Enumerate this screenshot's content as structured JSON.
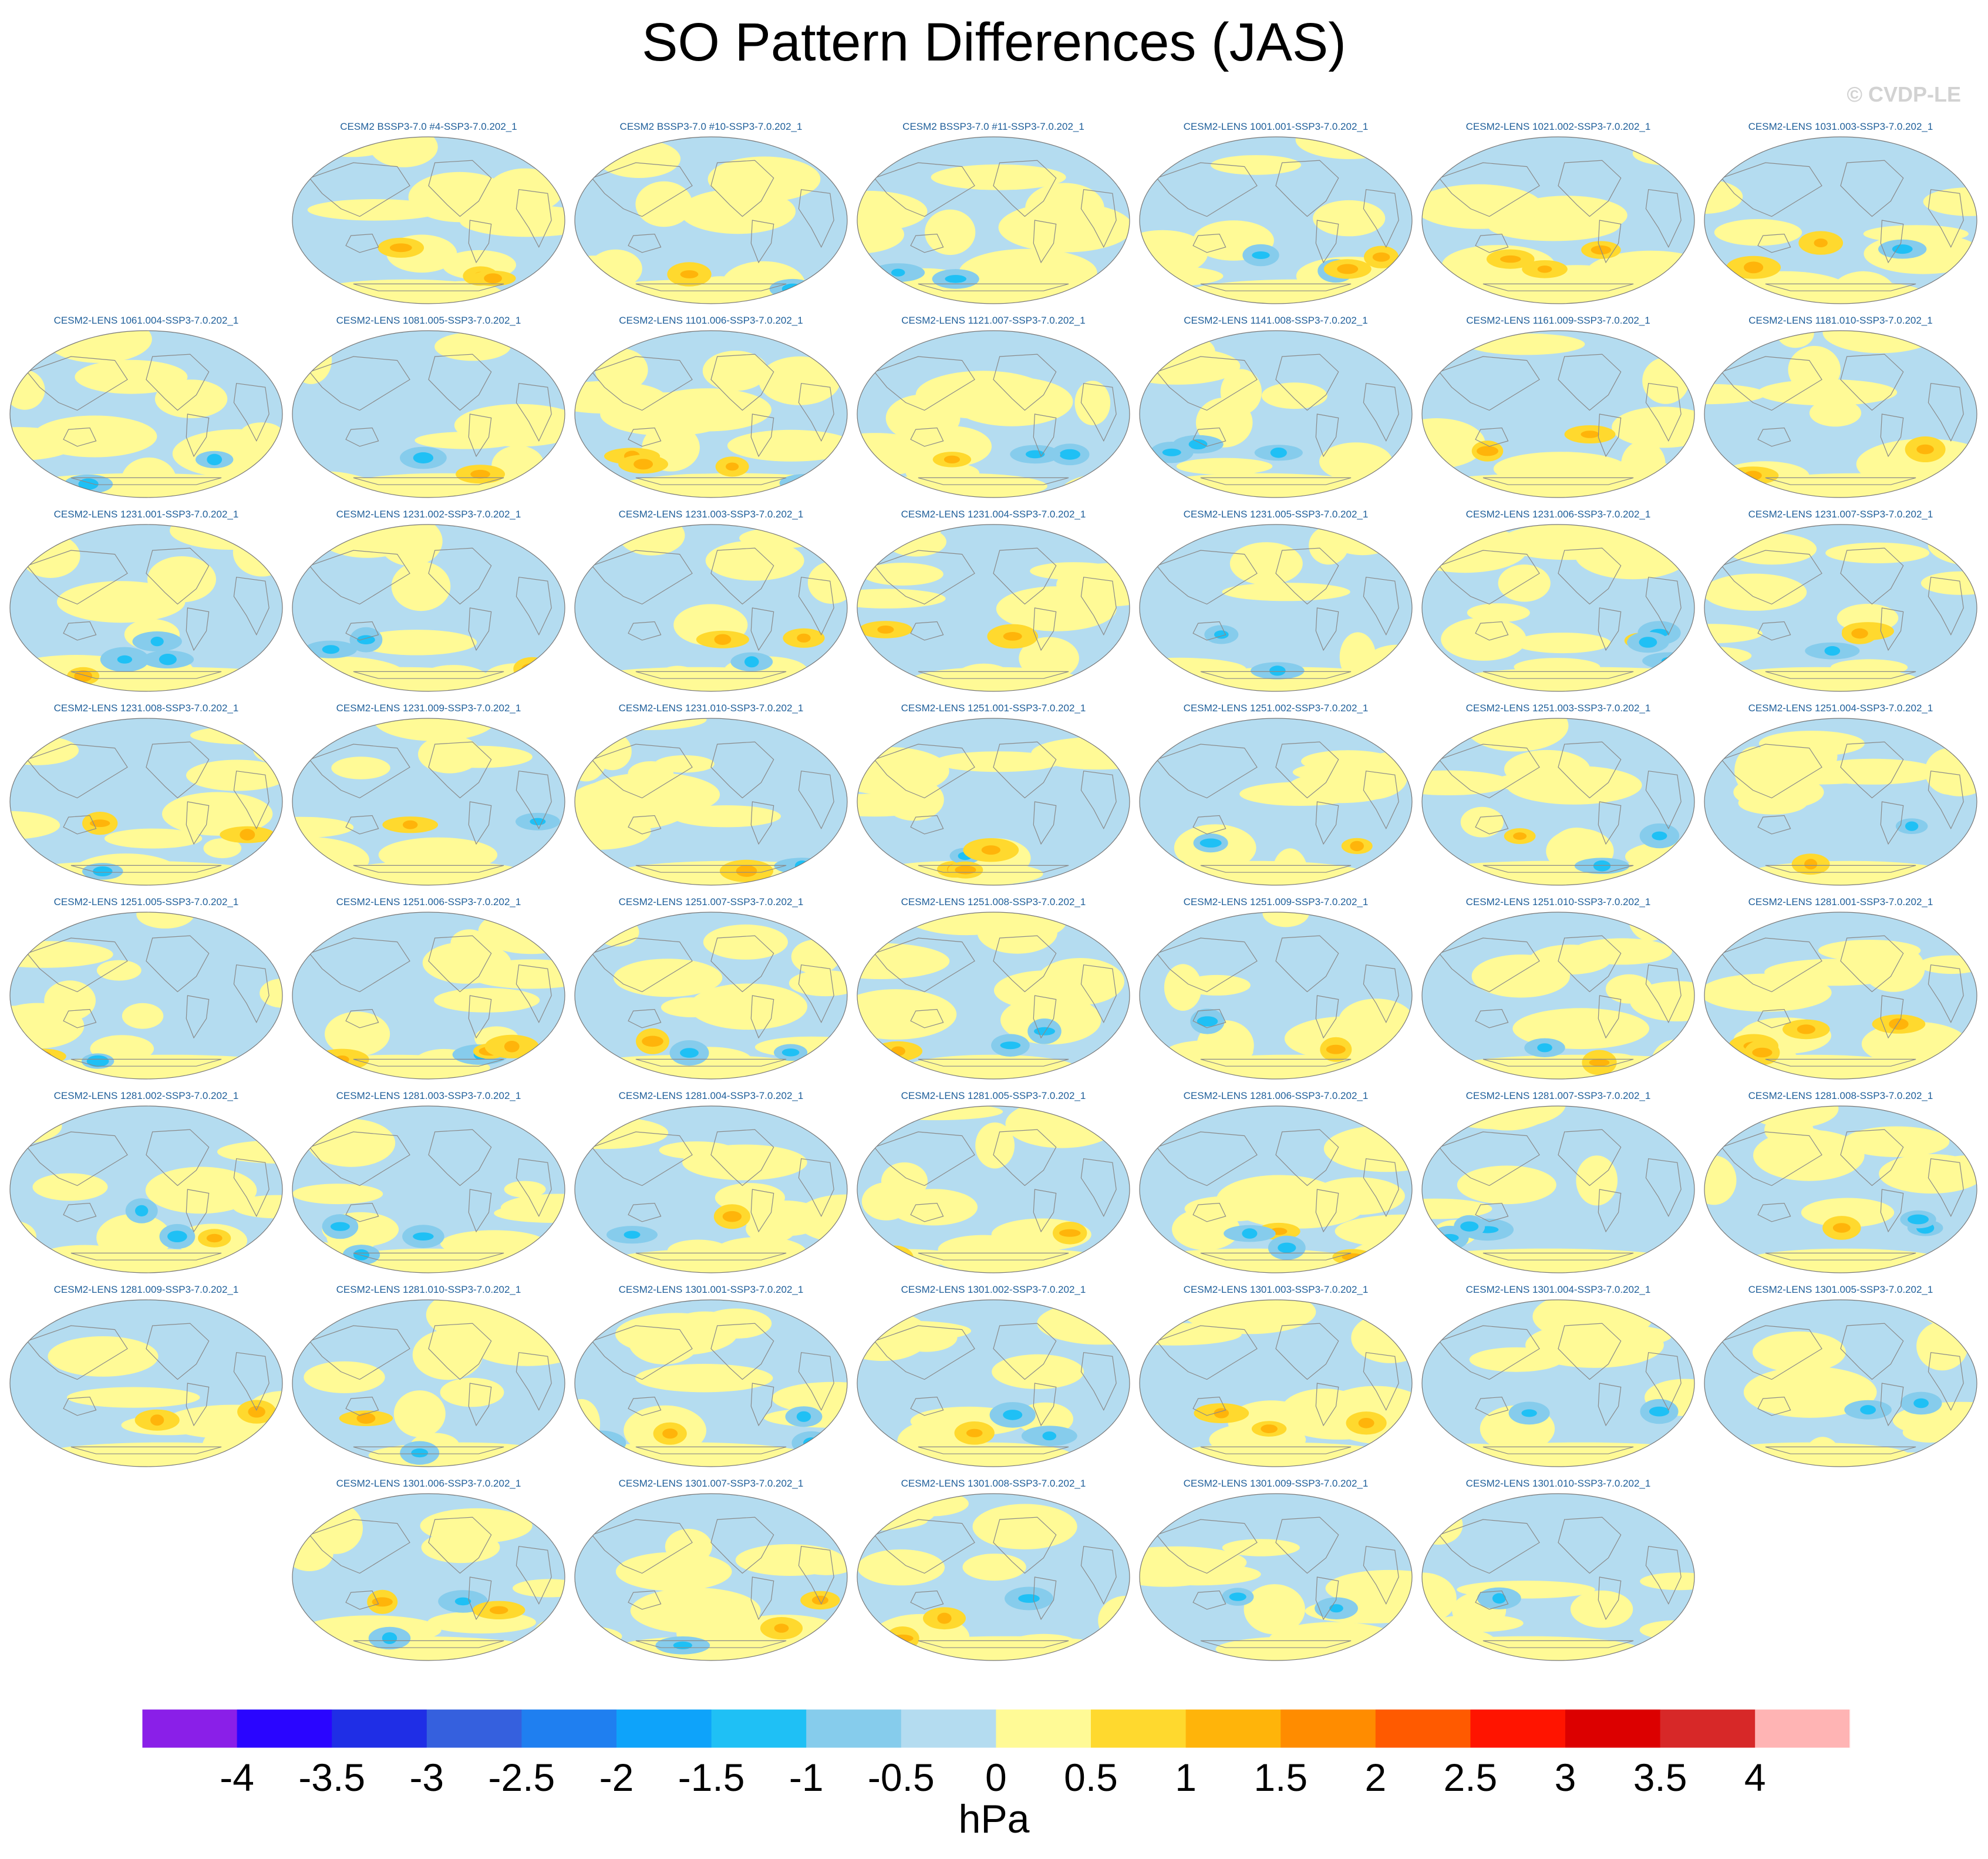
{
  "title": "SO Pattern Differences (JAS)",
  "credit": "© CVDP-LE",
  "colors": {
    "ocean_base": "#b4dcf0",
    "positive_light": "#fffa96",
    "coast": "#8a8a8a",
    "panel_title": "#1f5f9a"
  },
  "chart_data": {
    "type": "map-panel-grid",
    "title": "SO Pattern Differences (JAS)",
    "units": "hPa",
    "grid": {
      "rows": 8,
      "columns": 7
    },
    "panels": [
      {
        "label": "CESM2 BSSP3-7.0 #4-SSP3-7.0.202_1",
        "row": 0,
        "col": 1
      },
      {
        "label": "CESM2 BSSP3-7.0 #10-SSP3-7.0.202_1",
        "row": 0,
        "col": 2
      },
      {
        "label": "CESM2 BSSP3-7.0 #11-SSP3-7.0.202_1",
        "row": 0,
        "col": 3
      },
      {
        "label": "CESM2-LENS 1001.001-SSP3-7.0.202_1",
        "row": 0,
        "col": 4
      },
      {
        "label": "CESM2-LENS 1021.002-SSP3-7.0.202_1",
        "row": 0,
        "col": 5
      },
      {
        "label": "CESM2-LENS 1031.003-SSP3-7.0.202_1",
        "row": 0,
        "col": 6
      },
      {
        "label": "CESM2-LENS 1061.004-SSP3-7.0.202_1",
        "row": 1,
        "col": 0
      },
      {
        "label": "CESM2-LENS 1081.005-SSP3-7.0.202_1",
        "row": 1,
        "col": 1
      },
      {
        "label": "CESM2-LENS 1101.006-SSP3-7.0.202_1",
        "row": 1,
        "col": 2
      },
      {
        "label": "CESM2-LENS 1121.007-SSP3-7.0.202_1",
        "row": 1,
        "col": 3
      },
      {
        "label": "CESM2-LENS 1141.008-SSP3-7.0.202_1",
        "row": 1,
        "col": 4
      },
      {
        "label": "CESM2-LENS 1161.009-SSP3-7.0.202_1",
        "row": 1,
        "col": 5
      },
      {
        "label": "CESM2-LENS 1181.010-SSP3-7.0.202_1",
        "row": 1,
        "col": 6
      },
      {
        "label": "CESM2-LENS 1231.001-SSP3-7.0.202_1",
        "row": 2,
        "col": 0
      },
      {
        "label": "CESM2-LENS 1231.002-SSP3-7.0.202_1",
        "row": 2,
        "col": 1
      },
      {
        "label": "CESM2-LENS 1231.003-SSP3-7.0.202_1",
        "row": 2,
        "col": 2
      },
      {
        "label": "CESM2-LENS 1231.004-SSP3-7.0.202_1",
        "row": 2,
        "col": 3
      },
      {
        "label": "CESM2-LENS 1231.005-SSP3-7.0.202_1",
        "row": 2,
        "col": 4
      },
      {
        "label": "CESM2-LENS 1231.006-SSP3-7.0.202_1",
        "row": 2,
        "col": 5
      },
      {
        "label": "CESM2-LENS 1231.007-SSP3-7.0.202_1",
        "row": 2,
        "col": 6
      },
      {
        "label": "CESM2-LENS 1231.008-SSP3-7.0.202_1",
        "row": 3,
        "col": 0
      },
      {
        "label": "CESM2-LENS 1231.009-SSP3-7.0.202_1",
        "row": 3,
        "col": 1
      },
      {
        "label": "CESM2-LENS 1231.010-SSP3-7.0.202_1",
        "row": 3,
        "col": 2
      },
      {
        "label": "CESM2-LENS 1251.001-SSP3-7.0.202_1",
        "row": 3,
        "col": 3
      },
      {
        "label": "CESM2-LENS 1251.002-SSP3-7.0.202_1",
        "row": 3,
        "col": 4
      },
      {
        "label": "CESM2-LENS 1251.003-SSP3-7.0.202_1",
        "row": 3,
        "col": 5
      },
      {
        "label": "CESM2-LENS 1251.004-SSP3-7.0.202_1",
        "row": 3,
        "col": 6
      },
      {
        "label": "CESM2-LENS 1251.005-SSP3-7.0.202_1",
        "row": 4,
        "col": 0
      },
      {
        "label": "CESM2-LENS 1251.006-SSP3-7.0.202_1",
        "row": 4,
        "col": 1
      },
      {
        "label": "CESM2-LENS 1251.007-SSP3-7.0.202_1",
        "row": 4,
        "col": 2
      },
      {
        "label": "CESM2-LENS 1251.008-SSP3-7.0.202_1",
        "row": 4,
        "col": 3
      },
      {
        "label": "CESM2-LENS 1251.009-SSP3-7.0.202_1",
        "row": 4,
        "col": 4
      },
      {
        "label": "CESM2-LENS 1251.010-SSP3-7.0.202_1",
        "row": 4,
        "col": 5
      },
      {
        "label": "CESM2-LENS 1281.001-SSP3-7.0.202_1",
        "row": 4,
        "col": 6
      },
      {
        "label": "CESM2-LENS 1281.002-SSP3-7.0.202_1",
        "row": 5,
        "col": 0
      },
      {
        "label": "CESM2-LENS 1281.003-SSP3-7.0.202_1",
        "row": 5,
        "col": 1
      },
      {
        "label": "CESM2-LENS 1281.004-SSP3-7.0.202_1",
        "row": 5,
        "col": 2
      },
      {
        "label": "CESM2-LENS 1281.005-SSP3-7.0.202_1",
        "row": 5,
        "col": 3
      },
      {
        "label": "CESM2-LENS 1281.006-SSP3-7.0.202_1",
        "row": 5,
        "col": 4
      },
      {
        "label": "CESM2-LENS 1281.007-SSP3-7.0.202_1",
        "row": 5,
        "col": 5
      },
      {
        "label": "CESM2-LENS 1281.008-SSP3-7.0.202_1",
        "row": 5,
        "col": 6
      },
      {
        "label": "CESM2-LENS 1281.009-SSP3-7.0.202_1",
        "row": 6,
        "col": 0
      },
      {
        "label": "CESM2-LENS 1281.010-SSP3-7.0.202_1",
        "row": 6,
        "col": 1
      },
      {
        "label": "CESM2-LENS 1301.001-SSP3-7.0.202_1",
        "row": 6,
        "col": 2
      },
      {
        "label": "CESM2-LENS 1301.002-SSP3-7.0.202_1",
        "row": 6,
        "col": 3
      },
      {
        "label": "CESM2-LENS 1301.003-SSP3-7.0.202_1",
        "row": 6,
        "col": 4
      },
      {
        "label": "CESM2-LENS 1301.004-SSP3-7.0.202_1",
        "row": 6,
        "col": 5
      },
      {
        "label": "CESM2-LENS 1301.005-SSP3-7.0.202_1",
        "row": 6,
        "col": 6
      },
      {
        "label": "CESM2-LENS 1301.006-SSP3-7.0.202_1",
        "row": 7,
        "col": 1
      },
      {
        "label": "CESM2-LENS 1301.007-SSP3-7.0.202_1",
        "row": 7,
        "col": 2
      },
      {
        "label": "CESM2-LENS 1301.008-SSP3-7.0.202_1",
        "row": 7,
        "col": 3
      },
      {
        "label": "CESM2-LENS 1301.009-SSP3-7.0.202_1",
        "row": 7,
        "col": 4
      },
      {
        "label": "CESM2-LENS 1301.010-SSP3-7.0.202_1",
        "row": 7,
        "col": 5
      }
    ],
    "colorbar": {
      "ticks": [
        "-4",
        "-3.5",
        "-3",
        "-2.5",
        "-2",
        "-1.5",
        "-1",
        "-0.5",
        "0",
        "0.5",
        "1",
        "1.5",
        "2",
        "2.5",
        "3",
        "3.5",
        "4"
      ],
      "colors": [
        "#8a1fe8",
        "#2a05ff",
        "#1f2ee6",
        "#3560de",
        "#1f7ff0",
        "#0ea3fa",
        "#1fc0f5",
        "#86ccec",
        "#b4dcf0",
        "#fffa96",
        "#ffd92e",
        "#ffb40a",
        "#ff8c00",
        "#ff5a00",
        "#ff1400",
        "#dc0000",
        "#d72828",
        "#ffb4b4"
      ]
    }
  }
}
